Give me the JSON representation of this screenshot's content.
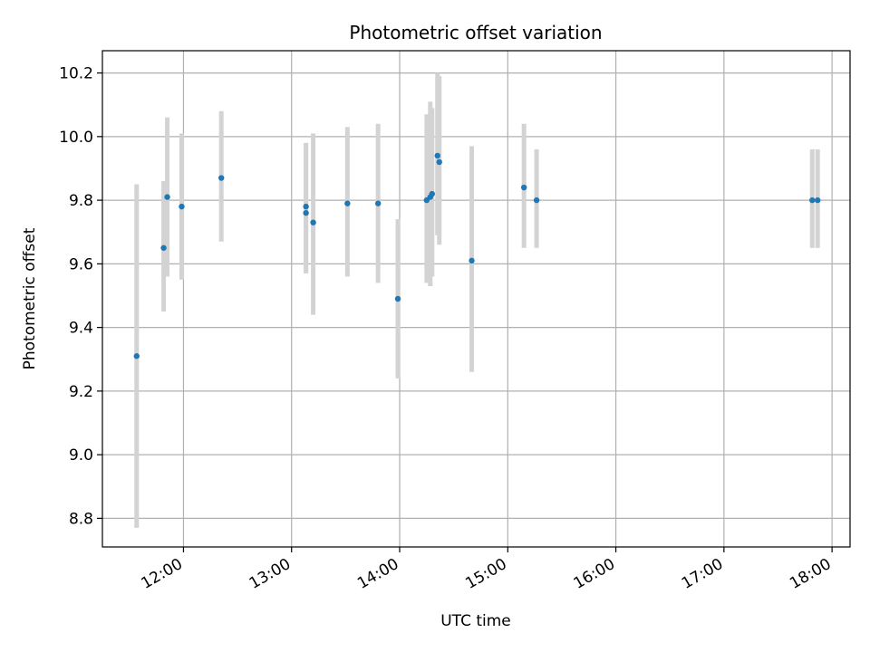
{
  "chart_data": {
    "type": "scatter",
    "title": "Photometric offset variation",
    "xlabel": "UTC time",
    "ylabel": "Photometric offset",
    "x_tick_labels": [
      "12:00",
      "13:00",
      "14:00",
      "15:00",
      "16:00",
      "17:00",
      "18:00"
    ],
    "x_tick_minutes": [
      720,
      780,
      840,
      900,
      960,
      1020,
      1080
    ],
    "y_ticks": [
      8.8,
      9.0,
      9.2,
      9.4,
      9.6,
      9.8,
      10.0,
      10.2
    ],
    "y_tick_labels": [
      "8.8",
      "9.0",
      "9.2",
      "9.4",
      "9.6",
      "9.8",
      "10.0",
      "10.2"
    ],
    "xlim": [
      "11:15",
      "18:10"
    ],
    "ylim": [
      8.71,
      10.27
    ],
    "grid": true,
    "colors": {
      "points": "#1f77b4",
      "error_bars": "#d3d3d3",
      "grid": "#b0b0b0"
    },
    "points": [
      {
        "time": "11:34",
        "y": 9.31,
        "low": 8.77,
        "high": 9.85
      },
      {
        "time": "11:49",
        "y": 9.65,
        "low": 9.45,
        "high": 9.86
      },
      {
        "time": "11:51",
        "y": 9.81,
        "low": 9.56,
        "high": 10.06
      },
      {
        "time": "11:59",
        "y": 9.78,
        "low": 9.55,
        "high": 10.01
      },
      {
        "time": "12:21",
        "y": 9.87,
        "low": 9.67,
        "high": 10.08
      },
      {
        "time": "13:08",
        "y": 9.76,
        "low": 9.57,
        "high": 9.98
      },
      {
        "time": "13:08",
        "y": 9.78,
        "low": 9.57,
        "high": 9.98
      },
      {
        "time": "13:12",
        "y": 9.73,
        "low": 9.44,
        "high": 10.01
      },
      {
        "time": "13:31",
        "y": 9.79,
        "low": 9.56,
        "high": 10.03
      },
      {
        "time": "13:48",
        "y": 9.79,
        "low": 9.54,
        "high": 10.04
      },
      {
        "time": "13:59",
        "y": 9.49,
        "low": 9.24,
        "high": 9.74
      },
      {
        "time": "14:15",
        "y": 9.8,
        "low": 9.54,
        "high": 10.07
      },
      {
        "time": "14:17",
        "y": 9.81,
        "low": 9.53,
        "high": 10.11
      },
      {
        "time": "14:18",
        "y": 9.82,
        "low": 9.56,
        "high": 10.09
      },
      {
        "time": "14:21",
        "y": 9.94,
        "low": 9.69,
        "high": 10.2
      },
      {
        "time": "14:22",
        "y": 9.92,
        "low": 9.66,
        "high": 10.19
      },
      {
        "time": "14:40",
        "y": 9.61,
        "low": 9.26,
        "high": 9.97
      },
      {
        "time": "15:09",
        "y": 9.84,
        "low": 9.65,
        "high": 10.04
      },
      {
        "time": "15:16",
        "y": 9.8,
        "low": 9.65,
        "high": 9.96
      },
      {
        "time": "17:49",
        "y": 9.8,
        "low": 9.65,
        "high": 9.96
      },
      {
        "time": "17:52",
        "y": 9.8,
        "low": 9.65,
        "high": 9.96
      }
    ]
  }
}
